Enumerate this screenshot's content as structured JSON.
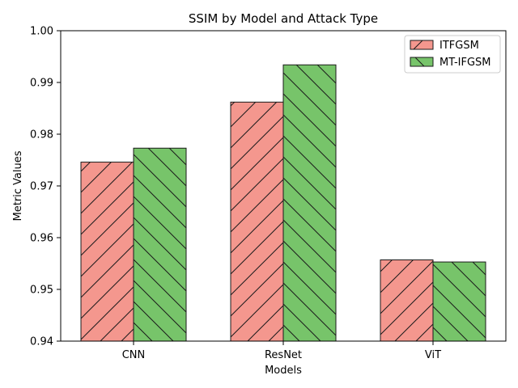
{
  "chart_data": {
    "type": "bar",
    "title": "SSIM by Model and Attack Type",
    "xlabel": "Models",
    "ylabel": "Metric Values",
    "categories": [
      "CNN",
      "ResNet",
      "ViT"
    ],
    "series": [
      {
        "name": "ITFGSM",
        "values": [
          0.9746,
          0.9862,
          0.9557
        ],
        "color": "#f4978e",
        "hatch": "forward-diagonal"
      },
      {
        "name": "MT-IFGSM",
        "values": [
          0.9773,
          0.9934,
          0.9553
        ],
        "color": "#77c46a",
        "hatch": "back-diagonal"
      }
    ],
    "ylim": [
      0.94,
      1.0
    ],
    "yticks": [
      "0.94",
      "0.95",
      "0.96",
      "0.97",
      "0.98",
      "0.99",
      "1.00"
    ],
    "grid": false,
    "legend": "top-right"
  }
}
